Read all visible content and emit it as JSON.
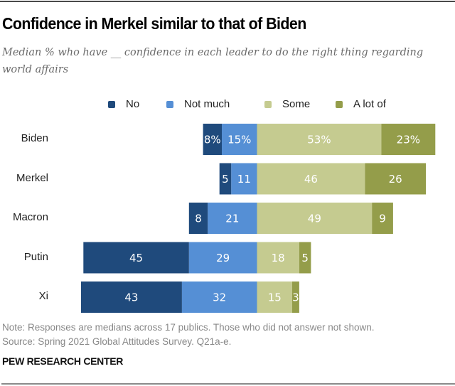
{
  "header": {
    "title": "Confidence in Merkel similar to that of Biden",
    "subtitle": "Median % who have __ confidence in each leader to do the right thing regarding world affairs"
  },
  "footer": {
    "note": "Note: Responses are medians across 17 publics. Those who did not answer not shown.",
    "source": "Source: Spring 2021 Global Attitudes Survey. Q21a-e.",
    "brand": "PEW RESEARCH CENTER"
  },
  "chart_data": {
    "type": "bar",
    "orientation": "horizontal",
    "stacked": "diverging",
    "title": "Confidence in Merkel similar to that of Biden",
    "subtitle": "Median % who have __ confidence in each leader to do the right thing regarding world affairs",
    "categories": [
      "Biden",
      "Merkel",
      "Macron",
      "Putin",
      "Xi"
    ],
    "legend_position": "top",
    "series": [
      {
        "name": "No",
        "side": "negative",
        "color": "#1f4a7c",
        "values": [
          8,
          5,
          8,
          45,
          43
        ],
        "labels": [
          "8%",
          "5",
          "8",
          "45",
          "43"
        ]
      },
      {
        "name": "Not much",
        "side": "negative",
        "color": "#558fd5",
        "values": [
          15,
          11,
          21,
          29,
          32
        ],
        "labels": [
          "15%",
          "11",
          "21",
          "29",
          "32"
        ]
      },
      {
        "name": "Some",
        "side": "positive",
        "color": "#c5cb90",
        "values": [
          53,
          46,
          49,
          18,
          15
        ],
        "labels": [
          "53%",
          "46",
          "49",
          "18",
          "15"
        ]
      },
      {
        "name": "A lot of",
        "side": "positive",
        "color": "#949d4a",
        "values": [
          23,
          26,
          9,
          5,
          3
        ],
        "labels": [
          "23%",
          "26",
          "9",
          "5",
          "3"
        ]
      }
    ],
    "xlabel": "",
    "ylabel": "",
    "grid": false
  }
}
